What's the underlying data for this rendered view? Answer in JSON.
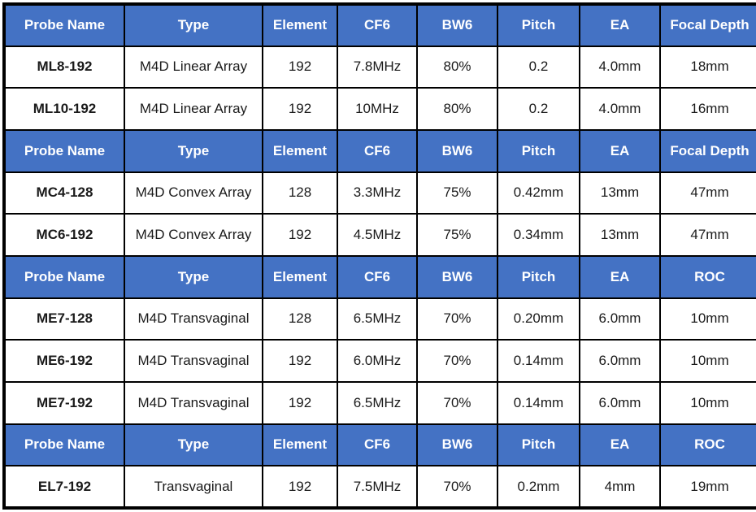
{
  "colors": {
    "header_bg": "#4472C4",
    "header_text": "#FFFFFF",
    "cell_bg": "#FFFFFF",
    "cell_text": "#1A1A1A",
    "border": "#000000"
  },
  "table": {
    "sections": [
      {
        "headers": [
          "Probe Name",
          "Type",
          "Element",
          "CF6",
          "BW6",
          "Pitch",
          "EA",
          "Focal Depth"
        ],
        "rows": [
          [
            "ML8-192",
            "M4D Linear Array",
            "192",
            "7.8MHz",
            "80%",
            "0.2",
            "4.0mm",
            "18mm"
          ],
          [
            "ML10-192",
            "M4D Linear Array",
            "192",
            "10MHz",
            "80%",
            "0.2",
            "4.0mm",
            "16mm"
          ]
        ]
      },
      {
        "headers": [
          "Probe Name",
          "Type",
          "Element",
          "CF6",
          "BW6",
          "Pitch",
          "EA",
          "Focal Depth"
        ],
        "rows": [
          [
            "MC4-128",
            "M4D Convex Array",
            "128",
            "3.3MHz",
            "75%",
            "0.42mm",
            "13mm",
            "47mm"
          ],
          [
            "MC6-192",
            "M4D Convex Array",
            "192",
            "4.5MHz",
            "75%",
            "0.34mm",
            "13mm",
            "47mm"
          ]
        ]
      },
      {
        "headers": [
          "Probe Name",
          "Type",
          "Element",
          "CF6",
          "BW6",
          "Pitch",
          "EA",
          "ROC"
        ],
        "rows": [
          [
            "ME7-128",
            "M4D Transvaginal",
            "128",
            "6.5MHz",
            "70%",
            "0.20mm",
            "6.0mm",
            "10mm"
          ],
          [
            "ME6-192",
            "M4D Transvaginal",
            "192",
            "6.0MHz",
            "70%",
            "0.14mm",
            "6.0mm",
            "10mm"
          ],
          [
            "ME7-192",
            "M4D Transvaginal",
            "192",
            "6.5MHz",
            "70%",
            "0.14mm",
            "6.0mm",
            "10mm"
          ]
        ]
      },
      {
        "headers": [
          "Probe Name",
          "Type",
          "Element",
          "CF6",
          "BW6",
          "Pitch",
          "EA",
          "ROC"
        ],
        "rows": [
          [
            "EL7-192",
            "Transvaginal",
            "192",
            "7.5MHz",
            "70%",
            "0.2mm",
            "4mm",
            "19mm"
          ]
        ]
      }
    ]
  }
}
